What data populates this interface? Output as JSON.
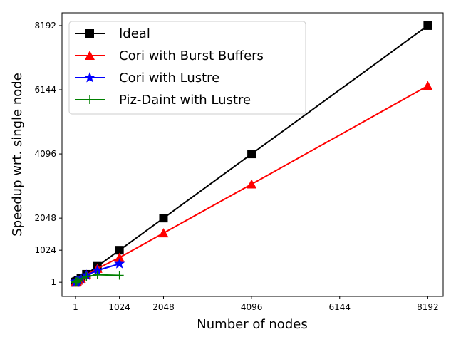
{
  "chart_data": {
    "type": "line",
    "title": "",
    "xlabel": "Number of nodes",
    "ylabel": "Speedup wrt. single node",
    "xlim": [
      -312,
      8550
    ],
    "ylim": [
      -450,
      8600
    ],
    "xticks": [
      1,
      1024,
      2048,
      4096,
      6144,
      8192
    ],
    "yticks": [
      1,
      1024,
      2048,
      4096,
      6144,
      8192
    ],
    "grid": false,
    "legend_position": "top-left",
    "series": [
      {
        "name": "Ideal",
        "color": "#000000",
        "marker": "square",
        "x": [
          1,
          2,
          4,
          8,
          16,
          32,
          64,
          128,
          256,
          512,
          1024,
          2048,
          4096,
          8192
        ],
        "y": [
          1,
          2,
          4,
          8,
          16,
          32,
          64,
          128,
          256,
          512,
          1024,
          2048,
          4096,
          8192
        ]
      },
      {
        "name": "Cori with Burst Buffers",
        "color": "#ff0000",
        "marker": "triangle",
        "x": [
          1,
          2,
          4,
          8,
          16,
          32,
          64,
          128,
          256,
          512,
          1024,
          2048,
          4096,
          8192
        ],
        "y": [
          1,
          2,
          4,
          8,
          16,
          31,
          62,
          122,
          235,
          440,
          790,
          1570,
          3130,
          6270
        ]
      },
      {
        "name": "Cori with Lustre",
        "color": "#0000ff",
        "marker": "star",
        "x": [
          1,
          2,
          4,
          8,
          16,
          32,
          64,
          128,
          256,
          512,
          1024
        ],
        "y": [
          1,
          2,
          4,
          8,
          16,
          31,
          62,
          120,
          225,
          380,
          590
        ]
      },
      {
        "name": "Piz-Daint with Lustre",
        "color": "#008000",
        "marker": "plus",
        "x": [
          1,
          2,
          4,
          8,
          16,
          32,
          64,
          128,
          256,
          512,
          1024
        ],
        "y": [
          1,
          2,
          4,
          8,
          16,
          31,
          60,
          110,
          180,
          240,
          220
        ]
      }
    ]
  }
}
